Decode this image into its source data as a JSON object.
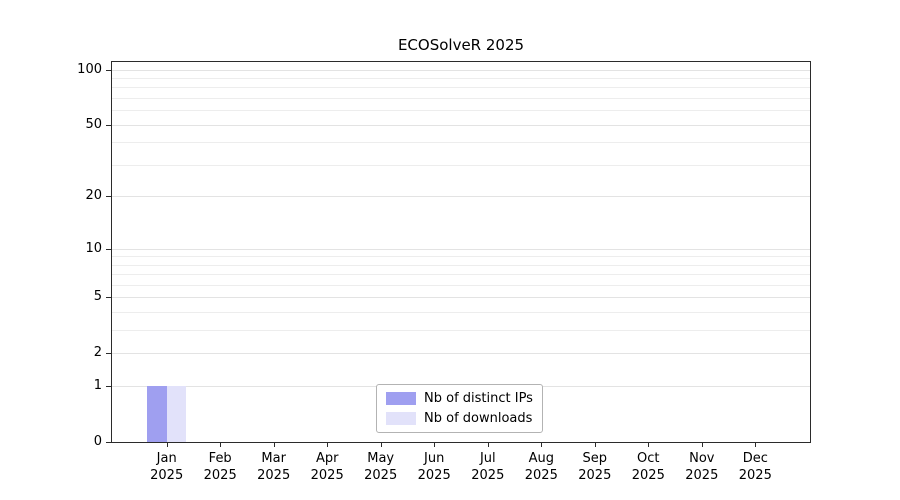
{
  "chart_data": {
    "type": "bar",
    "title": "ECOSolveR 2025",
    "x_categories": [
      {
        "month": "Jan",
        "year": "2025"
      },
      {
        "month": "Feb",
        "year": "2025"
      },
      {
        "month": "Mar",
        "year": "2025"
      },
      {
        "month": "Apr",
        "year": "2025"
      },
      {
        "month": "May",
        "year": "2025"
      },
      {
        "month": "Jun",
        "year": "2025"
      },
      {
        "month": "Jul",
        "year": "2025"
      },
      {
        "month": "Aug",
        "year": "2025"
      },
      {
        "month": "Sep",
        "year": "2025"
      },
      {
        "month": "Oct",
        "year": "2025"
      },
      {
        "month": "Nov",
        "year": "2025"
      },
      {
        "month": "Dec",
        "year": "2025"
      }
    ],
    "series": [
      {
        "name": "Nb of distinct IPs",
        "color": "#9f9ff0",
        "values": [
          1,
          0,
          0,
          0,
          0,
          0,
          0,
          0,
          0,
          0,
          0,
          0
        ]
      },
      {
        "name": "Nb of downloads",
        "color": "#e2e2fa",
        "values": [
          1,
          0,
          0,
          0,
          0,
          0,
          0,
          0,
          0,
          0,
          0,
          0
        ]
      }
    ],
    "y_ticks": [
      0,
      1,
      2,
      5,
      10,
      20,
      50,
      100
    ],
    "y_minor_gridlines": [
      3,
      4,
      6,
      7,
      8,
      9,
      30,
      40,
      60,
      70,
      80,
      90
    ],
    "y_scale": "log1p",
    "ylim": [
      0,
      110
    ],
    "grid": "horizontal",
    "legend_position": "bottom-center"
  }
}
